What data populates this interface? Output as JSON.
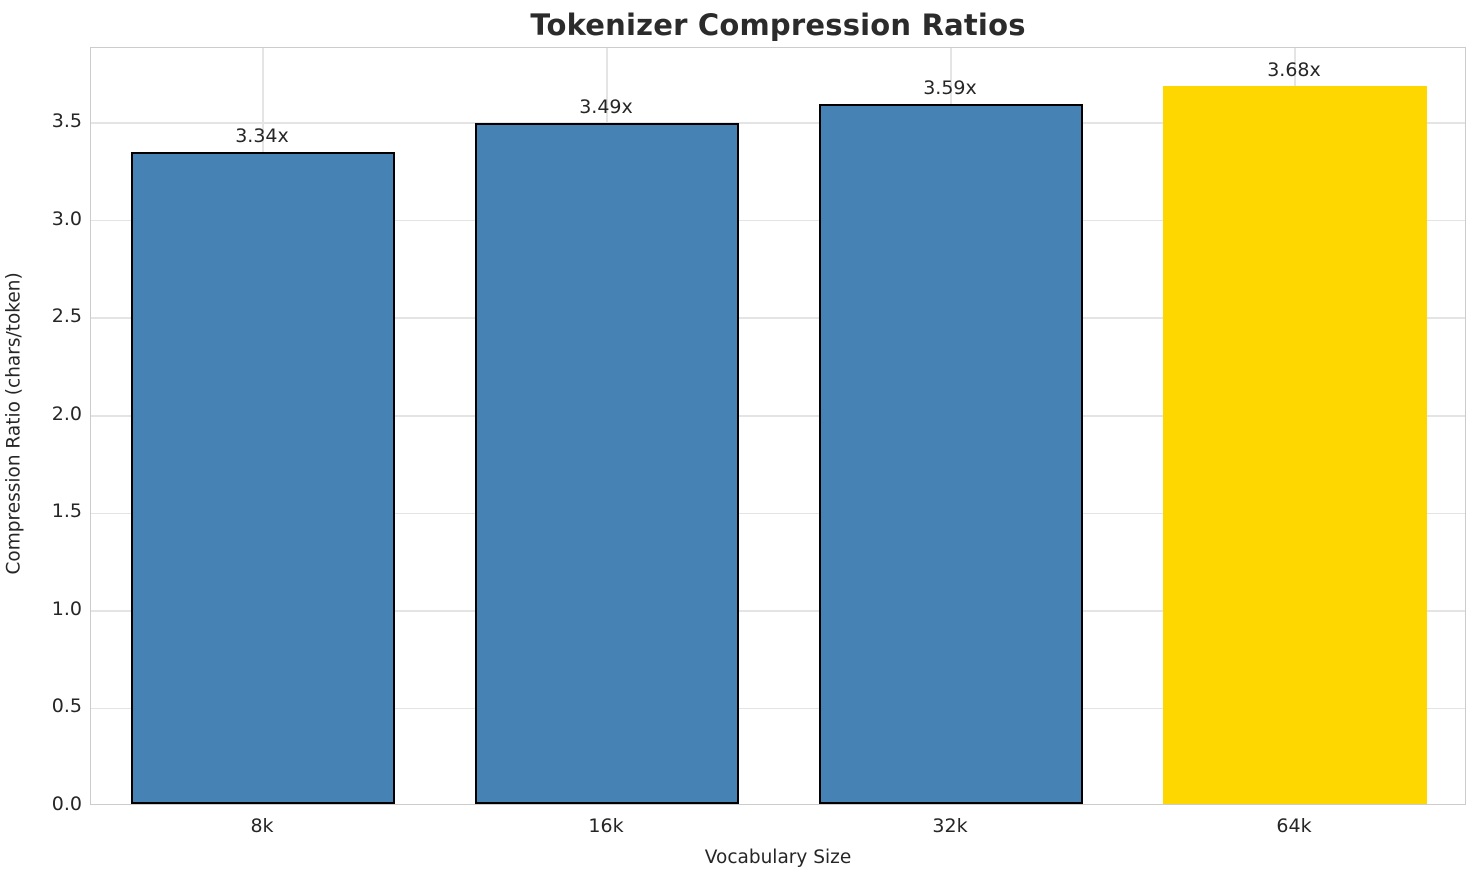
{
  "title": "Tokenizer Compression Ratios",
  "chart_data": {
    "type": "bar",
    "title": "Tokenizer Compression Ratios",
    "xlabel": "Vocabulary Size",
    "ylabel": "Compression Ratio (chars/token)",
    "categories": [
      "8k",
      "16k",
      "32k",
      "64k"
    ],
    "values": [
      3.34,
      3.49,
      3.59,
      3.68
    ],
    "bar_labels": [
      "3.34x",
      "3.49x",
      "3.59x",
      "3.68x"
    ],
    "bar_colors": [
      "#4682B4",
      "#4682B4",
      "#4682B4",
      "#FFD700"
    ],
    "bar_edge_colors": [
      "#000000",
      "#000000",
      "#000000",
      "none"
    ],
    "highlighted_category": "64k",
    "ylim": [
      0,
      3.885
    ],
    "yticks": [
      0.0,
      0.5,
      1.0,
      1.5,
      2.0,
      2.5,
      3.0,
      3.5
    ],
    "ytick_labels": [
      "0.0",
      "0.5",
      "1.0",
      "1.5",
      "2.0",
      "2.5",
      "3.0",
      "3.5"
    ],
    "grid": true,
    "grid_axis": "both",
    "legend": "none",
    "bar_width_fraction": 0.77
  },
  "colors": {
    "background": "#ffffff",
    "text": "#262626",
    "grid": "#e4e4e4",
    "spine": "#cccccc",
    "bar_default": "#4682B4",
    "bar_highlight": "#FFD700",
    "bar_edge": "#000000"
  }
}
